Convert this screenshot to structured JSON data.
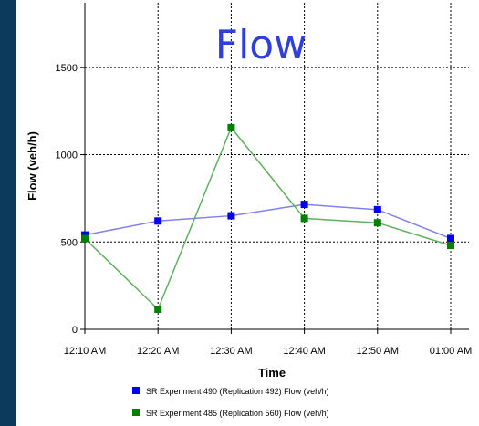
{
  "chart_data": {
    "type": "line",
    "title": "Flow",
    "xlabel": "Time",
    "ylabel": "Flow (veh/h)",
    "categories": [
      "12:10 AM",
      "12:20 AM",
      "12:30 AM",
      "12:40 AM",
      "12:50 AM",
      "01:00 AM"
    ],
    "yticks": [
      0,
      500,
      1000,
      1500
    ],
    "ylim": [
      0,
      1870
    ],
    "grid": true,
    "legend_position": "bottom",
    "series": [
      {
        "name": "SR Experiment 490 (Replication 492) Flow (veh/h)",
        "color": "#0000ee",
        "line_color": "#8080f0",
        "values": [
          540,
          620,
          650,
          715,
          685,
          520
        ]
      },
      {
        "name": "SR Experiment 485 (Replication 560) Flow (veh/h)",
        "color": "#008000",
        "line_color": "#60b060",
        "values": [
          520,
          115,
          1155,
          635,
          610,
          480
        ]
      }
    ]
  }
}
